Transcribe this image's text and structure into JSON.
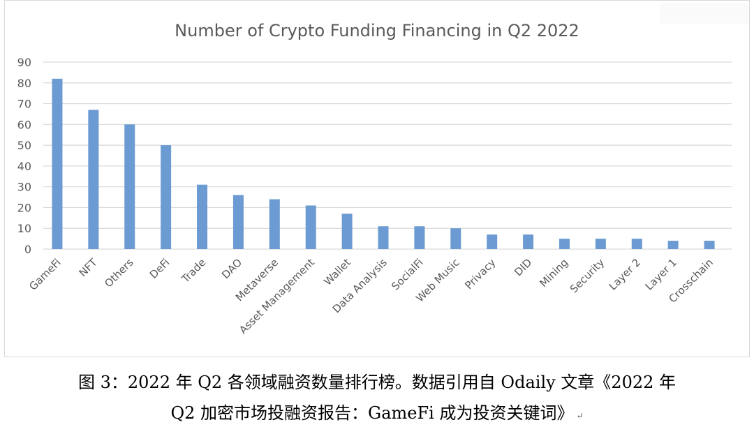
{
  "chart_data": {
    "type": "bar",
    "title": "Number of Crypto Funding Financing in Q2 2022",
    "categories": [
      "GameFi",
      "NFT",
      "Others",
      "DeFi",
      "Trade",
      "DAO",
      "Metaverse",
      "Asset Management",
      "Wallet",
      "Data Analysis",
      "SocialFi",
      "Web Music",
      "Privacy",
      "DID",
      "Mining",
      "Security",
      "Layer 2",
      "Layer 1",
      "Crosschain"
    ],
    "values": [
      82,
      67,
      60,
      50,
      31,
      26,
      24,
      21,
      17,
      11,
      11,
      10,
      7,
      7,
      5,
      5,
      5,
      4,
      4
    ],
    "ylim": [
      0,
      90
    ],
    "yticks": [
      0,
      10,
      20,
      30,
      40,
      50,
      60,
      70,
      80,
      90
    ],
    "grid": true,
    "bar_color": "#6b9bd2",
    "grid_color": "#d9d9d9"
  },
  "caption": {
    "line1": "图 3：2022 年 Q2 各领域融资数量排行榜。数据引用自 Odaily 文章《2022 年",
    "line2": "Q2 加密市场投融资报告：GameFi 成为投资关键词》",
    "return_mark": "↵"
  }
}
